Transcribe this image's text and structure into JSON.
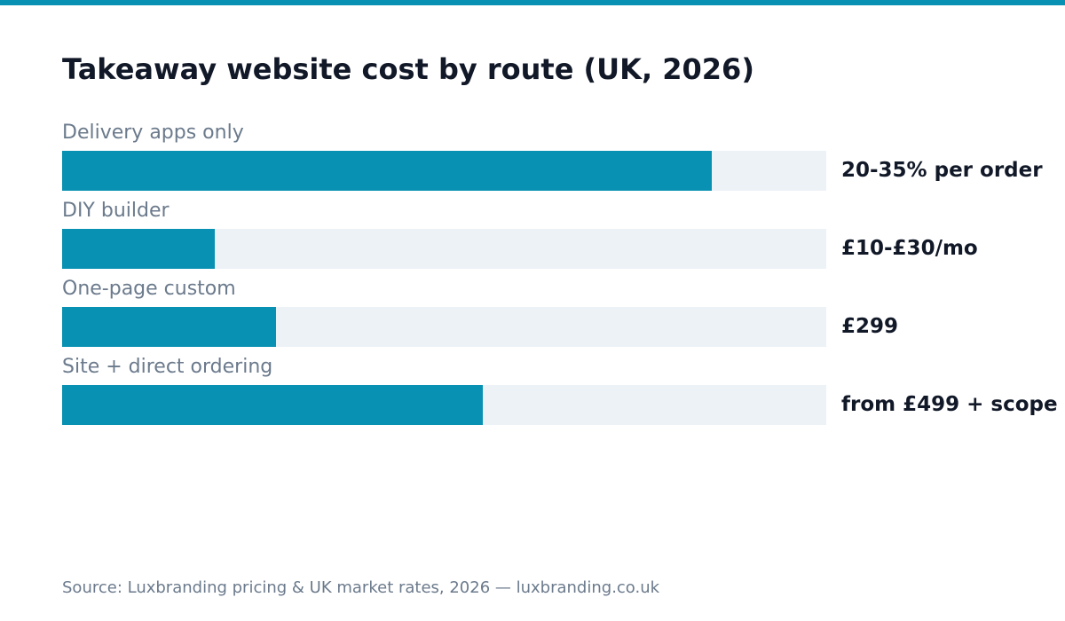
{
  "theme": {
    "accent": "#0891b2",
    "track": "#edf2f7",
    "top_rule": "#0891b2"
  },
  "chart_data": {
    "type": "bar",
    "orientation": "horizontal",
    "title": "Takeaway website cost by route (UK, 2026)",
    "categories": [
      "Delivery apps only",
      "DIY builder",
      "One-page custom",
      "Site + direct ordering"
    ],
    "values": [
      0.85,
      0.2,
      0.28,
      0.55
    ],
    "value_scale": "relative (0-1, no axis shown)",
    "value_labels": [
      "20-35% per order",
      "£10-£30/mo",
      "£299",
      "from £499 + scope"
    ],
    "xlim": [
      0,
      1
    ],
    "grid": false,
    "legend": "none"
  },
  "footer": {
    "source": "Source: Luxbranding pricing & UK market rates, 2026 — luxbranding.co.uk"
  }
}
